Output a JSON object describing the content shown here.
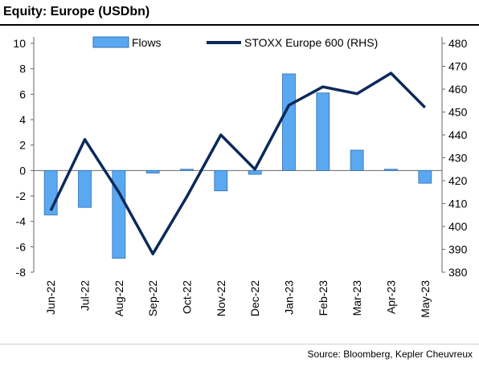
{
  "title": "Equity: Europe (USDbn)",
  "source": "Source: Bloomberg, Kepler Cheuvreux",
  "colors": {
    "bar_fill": "#5aa8f0",
    "bar_stroke": "#2f6fb5",
    "line": "#0b2a5a",
    "axis": "#666666"
  },
  "chart_data": {
    "type": "bar",
    "title": "Equity: Europe (USDbn)",
    "categories": [
      "Jun-22",
      "Jul-22",
      "Aug-22",
      "Sep-22",
      "Oct-22",
      "Nov-22",
      "Dec-22",
      "Jan-23",
      "Feb-23",
      "Mar-23",
      "Apr-23",
      "May-23"
    ],
    "series": [
      {
        "name": "Flows",
        "type": "bar",
        "axis": "left",
        "values": [
          -3.5,
          -2.9,
          -6.9,
          -0.2,
          0.1,
          -1.6,
          -0.3,
          7.6,
          6.1,
          1.6,
          0.1,
          -1.0
        ]
      },
      {
        "name": "STOXX Europe 600 (RHS)",
        "type": "line",
        "axis": "right",
        "values": [
          407,
          438,
          415,
          388,
          413,
          440,
          425,
          453,
          461,
          458,
          467,
          452
        ]
      }
    ],
    "y_left": {
      "min": -8,
      "max": 10,
      "ticks": [
        -8,
        -6,
        -4,
        -2,
        0,
        2,
        4,
        6,
        8,
        10
      ]
    },
    "y_right": {
      "min": 380,
      "max": 480,
      "ticks": [
        380,
        390,
        400,
        410,
        420,
        430,
        440,
        450,
        460,
        470,
        480
      ]
    },
    "legend_position": "top",
    "grid": false
  }
}
